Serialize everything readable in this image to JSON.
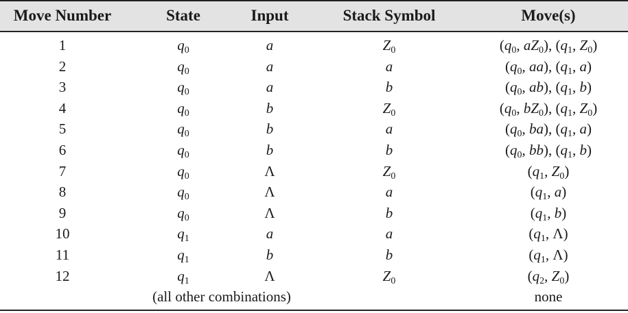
{
  "table": {
    "headers": [
      "Move Number",
      "State",
      "Input",
      "Stack Symbol",
      "Move(s)"
    ],
    "rows": [
      {
        "n": "1",
        "state": "q0",
        "input": "a",
        "stack": "Z0",
        "moves": "(q0, aZ0), (q1, Z0)"
      },
      {
        "n": "2",
        "state": "q0",
        "input": "a",
        "stack": "a",
        "moves": "(q0, aa), (q1, a)"
      },
      {
        "n": "3",
        "state": "q0",
        "input": "a",
        "stack": "b",
        "moves": "(q0, ab), (q1, b)"
      },
      {
        "n": "4",
        "state": "q0",
        "input": "b",
        "stack": "Z0",
        "moves": "(q0, bZ0), (q1, Z0)"
      },
      {
        "n": "5",
        "state": "q0",
        "input": "b",
        "stack": "a",
        "moves": "(q0, ba), (q1, a)"
      },
      {
        "n": "6",
        "state": "q0",
        "input": "b",
        "stack": "b",
        "moves": "(q0, bb), (q1, b)"
      },
      {
        "n": "7",
        "state": "q0",
        "input": "Λ",
        "stack": "Z0",
        "moves": "(q1, Z0)"
      },
      {
        "n": "8",
        "state": "q0",
        "input": "Λ",
        "stack": "a",
        "moves": "(q1, a)"
      },
      {
        "n": "9",
        "state": "q0",
        "input": "Λ",
        "stack": "b",
        "moves": "(q1, b)"
      },
      {
        "n": "10",
        "state": "q1",
        "input": "a",
        "stack": "a",
        "moves": "(q1, Λ)"
      },
      {
        "n": "11",
        "state": "q1",
        "input": "b",
        "stack": "b",
        "moves": "(q1, Λ)"
      },
      {
        "n": "12",
        "state": "q1",
        "input": "Λ",
        "stack": "Z0",
        "moves": "(q2, Z0)"
      }
    ],
    "footer": {
      "label": "(all other combinations)",
      "moves": "none"
    }
  }
}
